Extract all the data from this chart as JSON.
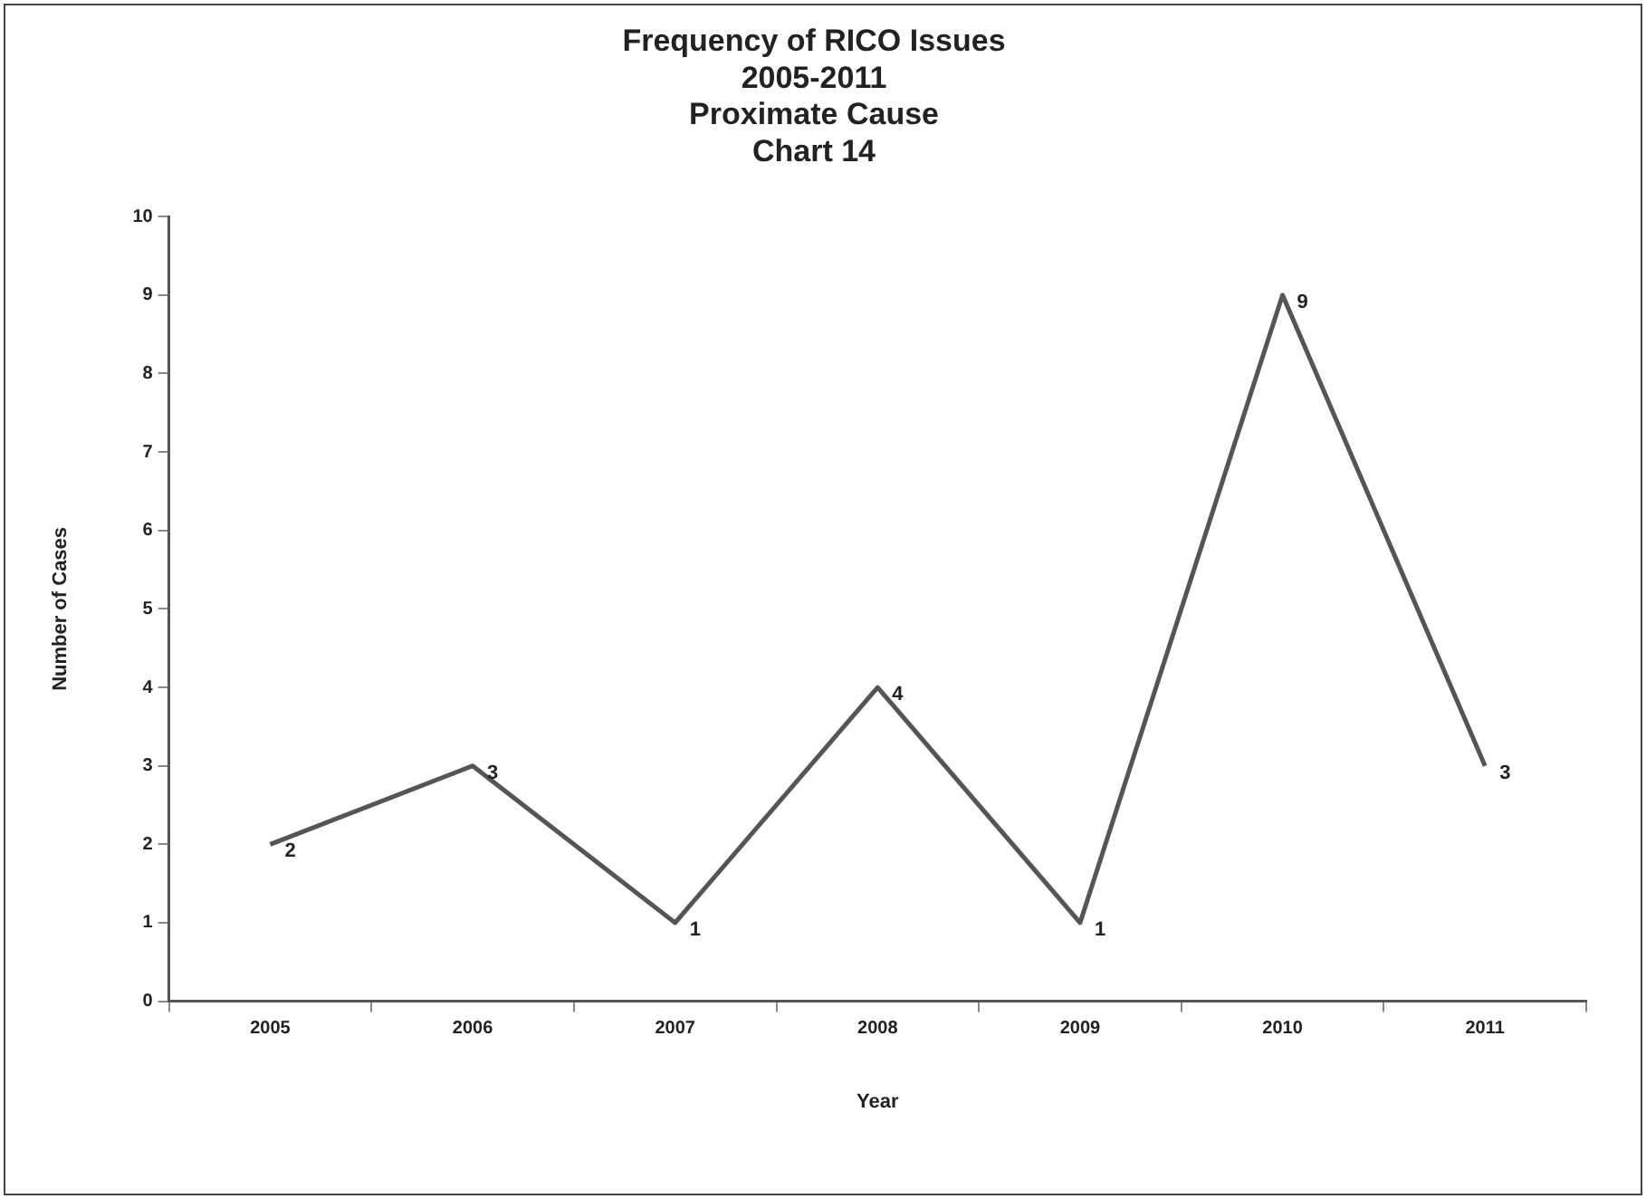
{
  "chart_data": {
    "type": "line",
    "title": "Frequency of RICO Issues\n2005-2011\nProximate Cause\nChart 14",
    "xlabel": "Year",
    "ylabel": "Number of Cases",
    "categories": [
      "2005",
      "2006",
      "2007",
      "2008",
      "2009",
      "2010",
      "2011"
    ],
    "series": [
      {
        "color": "#555555",
        "values": [
          2,
          3,
          1,
          4,
          1,
          9,
          3
        ]
      }
    ],
    "ylim": [
      0,
      10
    ],
    "yticks": [
      0,
      1,
      2,
      3,
      4,
      5,
      6,
      7,
      8,
      9,
      10
    ],
    "grid": false,
    "legend": false,
    "marker": "none",
    "line_style": "solid",
    "data_labels": true
  }
}
